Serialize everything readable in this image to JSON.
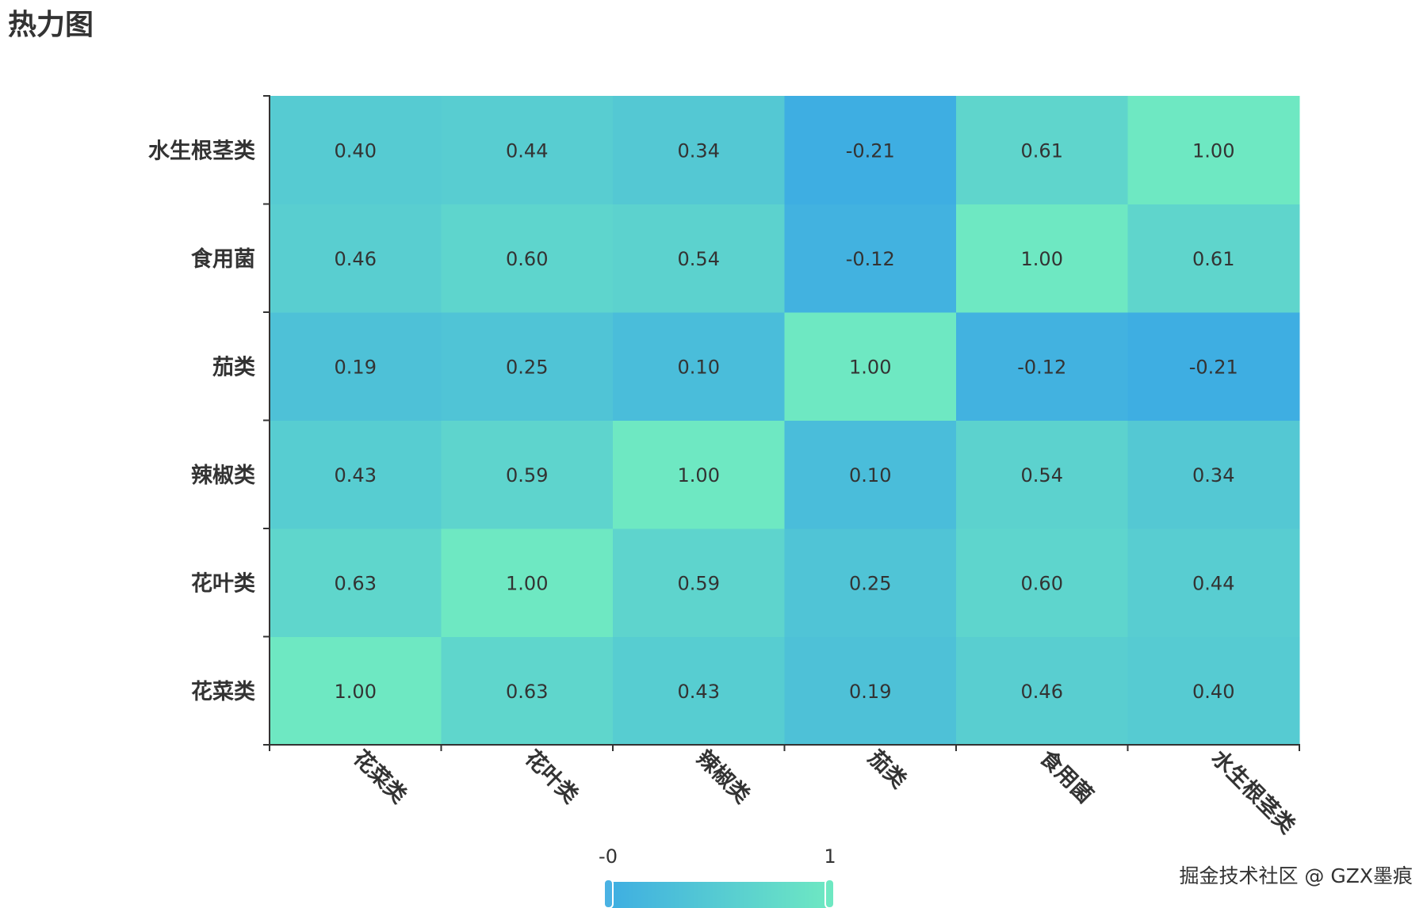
{
  "title": "热力图",
  "watermark": "掘金技术社区 @ GZX墨痕",
  "chart_data": {
    "type": "heatmap",
    "title": "热力图",
    "x_categories": [
      "花菜类",
      "花叶类",
      "辣椒类",
      "茄类",
      "食用菌",
      "水生根茎类"
    ],
    "y_categories": [
      "花菜类",
      "花叶类",
      "辣椒类",
      "茄类",
      "食用菌",
      "水生根茎类"
    ],
    "values": [
      [
        "1.00",
        "0.63",
        "0.43",
        "0.19",
        "0.46",
        "0.40"
      ],
      [
        "0.63",
        "1.00",
        "0.59",
        "0.25",
        "0.60",
        "0.44"
      ],
      [
        "0.43",
        "0.59",
        "1.00",
        "0.10",
        "0.54",
        "0.34"
      ],
      [
        "0.19",
        "0.25",
        "0.10",
        "1.00",
        "-0.12",
        "-0.21"
      ],
      [
        "0.46",
        "0.60",
        "0.54",
        "-0.12",
        "1.00",
        "0.61"
      ],
      [
        "0.40",
        "0.44",
        "0.34",
        "-0.21",
        "0.61",
        "1.00"
      ]
    ],
    "visual_map": {
      "min_label": "-0",
      "max_label": "1",
      "range": [
        -0.21,
        1.0
      ],
      "color_low": "#3eaee2",
      "color_high": "#6ee8c2"
    },
    "colors": {
      "axis": "#333333",
      "label": "#333333"
    }
  }
}
